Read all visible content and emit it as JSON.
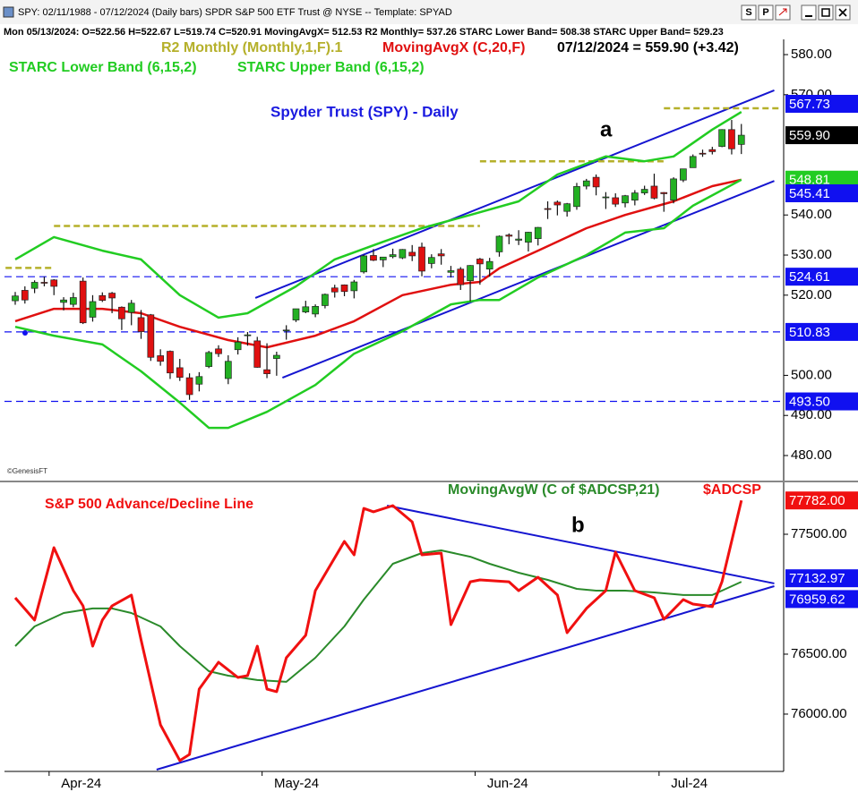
{
  "window": {
    "title": "SPY: 02/11/1988 - 07/12/2024 (Daily bars)   SPDR S&P 500 ETF Trust @ NYSE  --  Template: SPYAD",
    "buttons": [
      "S",
      "P"
    ]
  },
  "info_line": "Mon 05/13/2024: O=522.56 H=522.67 L=519.74 C=520.91 MovingAvgX= 512.53 R2 Monthly= 537.26 STARC Lower Band= 508.38 STARC Upper Band= 529.23",
  "chart_data": [
    {
      "type": "candlestick",
      "title": "Spyder Trust (SPY) - Daily",
      "last_quote": "07/12/2024 = 559.90 (+3.42)",
      "credit": "©GenesisFT",
      "annotation": "a",
      "up_color": "#22b022",
      "down_color": "#e01010",
      "open": [
        518.6,
        521.2,
        521.7,
        523.2,
        523.8,
        518.2,
        517.7,
        523.5,
        514.5,
        519.9,
        520.5,
        517.0,
        515.7,
        514.4,
        515.1,
        504.9,
        506.0,
        501.9,
        499.4,
        497.8,
        502.2,
        506.6,
        499.2,
        506.4,
        510.1,
        508.6,
        501.4,
        504.2,
        511.2,
        513.8,
        515.8,
        515.3,
        517.4,
        521.8,
        522.56,
        521.1,
        525.8,
        529.9,
        528.8,
        529.6,
        529.3,
        530.7,
        532.0,
        527.9,
        530.3,
        525.7,
        526.5,
        523.6,
        529.0,
        526.5,
        530.8,
        535.0,
        533.7,
        533.2,
        534.1,
        541.6,
        543.2,
        540.9,
        542.1,
        547.2,
        549.4,
        544.4,
        544.3,
        543.0,
        543.7,
        545.5,
        547.2,
        545.6,
        543.7,
        548.7,
        551.8,
        555.4,
        556.3,
        557.1,
        561.3,
        557.6
      ],
      "high": [
        520.8,
        522.2,
        523.7,
        524.6,
        524.0,
        519.5,
        520.6,
        524.4,
        520.0,
        520.7,
        520.8,
        517.2,
        518.8,
        516.3,
        515.3,
        506.5,
        506.2,
        504.1,
        500.5,
        500.8,
        506.1,
        507.5,
        505.0,
        509.5,
        510.8,
        509.6,
        508.0,
        505.9,
        512.5,
        516.6,
        518.6,
        517.7,
        520.4,
        522.6,
        522.67,
        523.8,
        530.1,
        531.5,
        529.5,
        531.6,
        531.5,
        532.5,
        533.1,
        530.2,
        531.5,
        527.3,
        527.0,
        527.5,
        529.3,
        529.3,
        534.9,
        535.4,
        536.2,
        535.8,
        537.0,
        543.4,
        543.6,
        543.0,
        548.0,
        549.0,
        550.1,
        545.7,
        545.4,
        545.0,
        546.2,
        547.3,
        550.3,
        545.7,
        549.4,
        551.5,
        555.1,
        556.3,
        557.0,
        561.4,
        563.7,
        562.7
      ],
      "low": [
        517.6,
        517.9,
        520.5,
        522.2,
        520.0,
        516.2,
        517.0,
        512.8,
        513.4,
        518.3,
        515.5,
        511.3,
        512.5,
        509.1,
        503.6,
        502.4,
        499.1,
        498.6,
        493.9,
        496.0,
        501.8,
        504.6,
        497.8,
        505.2,
        507.4,
        501.9,
        499.3,
        499.9,
        508.9,
        513.3,
        515.5,
        514.5,
        516.7,
        519.4,
        519.74,
        519.2,
        525.4,
        528.5,
        527.0,
        529.2,
        529.0,
        528.5,
        524.7,
        526.7,
        527.6,
        524.4,
        521.3,
        518.4,
        522.6,
        524.6,
        529.6,
        532.7,
        532.5,
        530.9,
        532.4,
        539.0,
        539.9,
        539.6,
        541.3,
        546.4,
        544.9,
        541.5,
        542.0,
        541.9,
        542.4,
        545.0,
        543.9,
        540.8,
        542.9,
        548.2,
        551.8,
        554.5,
        555.1,
        556.9,
        555.1,
        555.2
      ],
      "close": [
        519.8,
        518.8,
        523.2,
        523.1,
        522.2,
        518.8,
        519.4,
        513.1,
        518.4,
        518.7,
        519.3,
        514.1,
        518.0,
        510.9,
        504.5,
        503.5,
        500.6,
        499.5,
        495.2,
        499.7,
        505.7,
        505.4,
        503.5,
        508.3,
        510.1,
        502.0,
        500.4,
        505.0,
        511.3,
        516.6,
        517.1,
        517.2,
        520.2,
        520.8,
        520.91,
        523.3,
        529.8,
        528.7,
        529.5,
        530.1,
        531.4,
        529.8,
        526.0,
        529.4,
        529.8,
        526.1,
        522.6,
        527.4,
        527.8,
        528.4,
        534.7,
        534.7,
        534.0,
        535.7,
        536.9,
        541.4,
        542.5,
        542.8,
        547.1,
        548.5,
        547.0,
        544.5,
        542.7,
        544.8,
        545.5,
        546.4,
        544.2,
        545.3,
        549.0,
        551.5,
        554.6,
        555.3,
        555.8,
        561.3,
        556.5,
        559.9
      ],
      "series": [
        {
          "name": "R2 Monthly (Monthly,1,F).1",
          "color": "#b5b02a",
          "style": "steps",
          "x_start": [
            -1,
            4,
            48,
            67
          ],
          "x_end": [
            4,
            48,
            67,
            79
          ],
          "values": [
            526.8,
            537.26,
            553.4,
            566.6
          ]
        },
        {
          "name": "MovingAvgX (C,20,F)",
          "color": "#e01010",
          "style": "line",
          "x": [
            0,
            4,
            9,
            13,
            17,
            22,
            26,
            31,
            35,
            40,
            45,
            48,
            50,
            54,
            59,
            63,
            68,
            72,
            75
          ],
          "values": [
            513.5,
            516.6,
            516.6,
            515.5,
            512.1,
            508.8,
            507.0,
            509.9,
            513.5,
            520.0,
            522.6,
            523.3,
            526.7,
            531.1,
            536.7,
            540.0,
            543.4,
            547.2,
            548.8
          ]
        },
        {
          "name": "STARC Lower Band (6,15,2)",
          "color": "#22cc22",
          "style": "line",
          "x": [
            0,
            4,
            9,
            13,
            17,
            20,
            22,
            26,
            31,
            35,
            40,
            45,
            48,
            50,
            54,
            59,
            63,
            67,
            70,
            75
          ],
          "values": [
            512.1,
            509.9,
            507.7,
            501.0,
            493.2,
            486.9,
            486.9,
            490.9,
            497.6,
            505.4,
            511.0,
            517.7,
            518.8,
            518.8,
            524.4,
            530.0,
            535.6,
            536.7,
            542.3,
            548.81
          ]
        },
        {
          "name": "STARC Upper Band (6,15,2)",
          "color": "#22cc22",
          "style": "line",
          "x": [
            0,
            4,
            9,
            13,
            17,
            21,
            24,
            29,
            33,
            38,
            42,
            47,
            52,
            56,
            61,
            65,
            68,
            72,
            75
          ],
          "values": [
            528.9,
            534.5,
            531.1,
            528.9,
            520.0,
            514.4,
            515.5,
            522.2,
            528.9,
            533.3,
            536.7,
            540.0,
            543.4,
            550.1,
            554.6,
            553.4,
            554.6,
            561.3,
            565.7
          ]
        }
      ],
      "trendlines": [
        {
          "color": "#1515d0",
          "x": [
            24.8,
            78.4
          ],
          "values": [
            519.3,
            571.1
          ]
        },
        {
          "color": "#1515d0",
          "x": [
            27.6,
            78.4
          ],
          "values": [
            499.4,
            548.5
          ]
        }
      ],
      "markers": [
        {
          "value": 524.61,
          "label": "524.61",
          "color": "#1010f0",
          "dashed": true
        },
        {
          "value": 510.83,
          "label": "510.83",
          "color": "#1010f0",
          "dashed": true
        },
        {
          "value": 493.5,
          "label": "493.50",
          "color": "#1010f0",
          "dashed": true
        },
        {
          "value": 567.73,
          "label": "567.73",
          "color": "#1010f0",
          "dashed": false
        },
        {
          "value": 559.9,
          "label": "559.90",
          "color": "#000000",
          "dashed": false
        },
        {
          "value": 548.81,
          "label": "548.81",
          "color": "#22cc22",
          "dashed": false
        },
        {
          "value": 545.41,
          "label": "545.41",
          "color": "#1010f0",
          "dashed": false
        }
      ],
      "ylim": [
        474.2,
        583.8
      ],
      "yticks": [
        {
          "value": 580,
          "label": "580.00"
        },
        {
          "value": 570,
          "label": "570.00"
        },
        {
          "value": 540,
          "label": "540.00"
        },
        {
          "value": 530,
          "label": "530.00"
        },
        {
          "value": 520,
          "label": "520.00"
        },
        {
          "value": 500,
          "label": "500.00"
        },
        {
          "value": 490,
          "label": "490.00"
        },
        {
          "value": 480,
          "label": "480.00"
        }
      ]
    },
    {
      "type": "line",
      "title": "S&P 500 Advance/Decline Line",
      "annotation": "b",
      "categories": [
        null,
        null,
        null,
        null,
        "Apr-24",
        null,
        null,
        null,
        null,
        null,
        null,
        null,
        null,
        null,
        null,
        null,
        null,
        null,
        null,
        null,
        null,
        null,
        null,
        null,
        null,
        null,
        "May-24",
        null,
        null,
        null,
        null,
        null,
        null,
        null,
        null,
        null,
        null,
        null,
        null,
        null,
        null,
        null,
        null,
        null,
        null,
        null,
        null,
        null,
        "Jun-24",
        null,
        null,
        null,
        null,
        null,
        null,
        null,
        null,
        null,
        null,
        null,
        null,
        null,
        null,
        null,
        null,
        null,
        null,
        "Jul-24",
        null,
        null,
        null,
        null,
        null,
        null,
        null,
        null
      ],
      "series": [
        {
          "name": "$ADCSP",
          "color": "#f01010",
          "width": 3,
          "x": [
            0,
            2,
            4,
            6,
            7,
            8,
            9,
            10,
            12,
            13,
            15,
            17,
            18,
            19,
            21,
            23,
            24,
            25,
            26,
            27,
            28,
            30,
            31,
            34,
            35,
            36,
            37,
            39,
            41,
            42,
            44,
            45,
            47,
            48,
            51,
            52,
            54,
            56,
            57,
            59,
            61,
            62,
            64,
            66,
            67,
            69,
            70,
            72,
            73,
            75
          ],
          "values": [
            76970,
            76784,
            77388,
            77030,
            76903,
            76567,
            76784,
            76903,
            76993,
            76619,
            75910,
            75612,
            75664,
            76209,
            76433,
            76306,
            76321,
            76567,
            76209,
            76187,
            76470,
            76657,
            77030,
            77440,
            77328,
            77716,
            77687,
            77739,
            77604,
            77328,
            77343,
            76746,
            77104,
            77119,
            77104,
            77030,
            77142,
            76993,
            76679,
            76881,
            77030,
            77351,
            77030,
            76970,
            76791,
            76955,
            76918,
            76896,
            77104,
            77782
          ]
        },
        {
          "name": "MovingAvgW (C of $ADCSP,21)",
          "color": "#2a8a2a",
          "width": 2,
          "x": [
            0,
            2,
            5,
            8,
            10,
            12,
            15,
            17,
            20,
            22,
            25,
            28,
            31,
            34,
            36,
            39,
            42,
            44,
            47,
            49,
            52,
            55,
            58,
            60,
            63,
            66,
            69,
            72,
            75
          ],
          "values": [
            76567,
            76731,
            76843,
            76881,
            76881,
            76843,
            76731,
            76567,
            76358,
            76321,
            76284,
            76269,
            76470,
            76731,
            76955,
            77254,
            77343,
            77366,
            77313,
            77254,
            77179,
            77119,
            77045,
            77030,
            77030,
            77015,
            76993,
            76993,
            77104
          ]
        }
      ],
      "trendlines": [
        {
          "color": "#1515d0",
          "x": [
            38.4,
            78.4
          ],
          "values": [
            77739,
            77090
          ]
        },
        {
          "color": "#1515d0",
          "x": [
            14.6,
            78.4
          ],
          "values": [
            75537,
            77067
          ]
        }
      ],
      "markers": [
        {
          "value": 77782,
          "label": "77782.00",
          "color": "#f01010",
          "dashed": false
        },
        {
          "value": 77132.97,
          "label": "77132.97",
          "color": "#1010f0",
          "dashed": false
        },
        {
          "value": 76959.62,
          "label": "76959.62",
          "color": "#1010f0",
          "dashed": false
        }
      ],
      "ylim": [
        75522,
        77918
      ],
      "yticks": [
        {
          "value": 77500,
          "label": "77500.00"
        },
        {
          "value": 76500,
          "label": "76500.00"
        },
        {
          "value": 76000,
          "label": "76000.00"
        }
      ]
    }
  ]
}
